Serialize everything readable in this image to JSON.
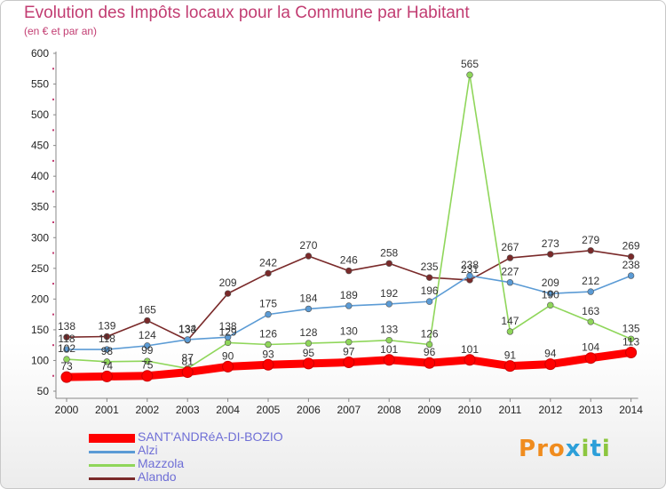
{
  "header": {
    "title": "Evolution des Impôts locaux pour la Commune par Habitant",
    "subtitle": "(en € et par an)"
  },
  "logo": {
    "text": "Proxiti",
    "colors": [
      "#f08c1e",
      "#2c9fd9",
      "#8cc63f"
    ]
  },
  "colors": {
    "title": "#c23d72",
    "legend_text": "#6f6fd6",
    "grid": "#d9d9d9",
    "axis_text": "#222222"
  },
  "chart_data": {
    "type": "line",
    "x": [
      "2000",
      "2001",
      "2002",
      "2003",
      "2004",
      "2005",
      "2006",
      "2007",
      "2008",
      "2009",
      "2010",
      "2011",
      "2012",
      "2013",
      "2014"
    ],
    "ylim": [
      50,
      600
    ],
    "yticks": [
      50,
      100,
      150,
      200,
      250,
      300,
      350,
      400,
      450,
      500,
      550,
      600
    ],
    "grid": false,
    "legend_position": "bottom-left",
    "series": [
      {
        "name": "SANT'ANDRéA-DI-BOZIO",
        "color": "#ff0000",
        "values": [
          73,
          74,
          75,
          81,
          90,
          93,
          95,
          97,
          101,
          96,
          101,
          91,
          94,
          104,
          113
        ],
        "labels": [
          "73",
          "74",
          "75",
          "81",
          "90",
          "93",
          "95",
          "97",
          "101",
          "96",
          "101",
          "91",
          "94",
          "104",
          "113"
        ]
      },
      {
        "name": "Alzi",
        "color": "#5b9bd5",
        "values": [
          118,
          118,
          124,
          134,
          138,
          175,
          184,
          189,
          192,
          196,
          238,
          227,
          209,
          212,
          238
        ],
        "labels": [
          "118",
          "118",
          "124",
          "134",
          "138",
          "175",
          "184",
          "189",
          "192",
          "196",
          "238",
          "227",
          "209",
          "212",
          "238"
        ]
      },
      {
        "name": "Mazzola",
        "color": "#8fd65a",
        "values": [
          102,
          98,
          99,
          87,
          129,
          126,
          128,
          130,
          133,
          126,
          565,
          147,
          190,
          163,
          135
        ],
        "labels": [
          "102",
          "98",
          "99",
          "87",
          "129",
          "126",
          "128",
          "130",
          "133",
          "126",
          "565",
          "147",
          "190",
          "163",
          "135"
        ]
      },
      {
        "name": "Alando",
        "color": "#7a2a2a",
        "values": [
          138,
          139,
          165,
          133,
          209,
          242,
          270,
          246,
          258,
          235,
          231,
          267,
          273,
          279,
          269
        ],
        "labels": [
          "138",
          "139",
          "165",
          "133",
          "209",
          "242",
          "270",
          "246",
          "258",
          "235",
          "231",
          "267",
          "273",
          "279",
          "269"
        ]
      }
    ]
  }
}
